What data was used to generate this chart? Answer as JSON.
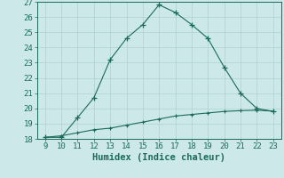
{
  "x": [
    9,
    10,
    11,
    12,
    13,
    14,
    15,
    16,
    17,
    18,
    19,
    20,
    21,
    22,
    23
  ],
  "y_main": [
    18.1,
    18.1,
    19.4,
    20.7,
    23.2,
    24.6,
    25.5,
    26.8,
    26.3,
    25.5,
    24.6,
    22.7,
    21.0,
    20.0,
    19.8
  ],
  "y_min": [
    18.1,
    18.2,
    18.4,
    18.6,
    18.7,
    18.9,
    19.1,
    19.3,
    19.5,
    19.6,
    19.7,
    19.8,
    19.85,
    19.88,
    19.82
  ],
  "xlim": [
    8.5,
    23.5
  ],
  "ylim": [
    18,
    27
  ],
  "xticks": [
    9,
    10,
    11,
    12,
    13,
    14,
    15,
    16,
    17,
    18,
    19,
    20,
    21,
    22,
    23
  ],
  "yticks": [
    18,
    19,
    20,
    21,
    22,
    23,
    24,
    25,
    26,
    27
  ],
  "xlabel": "Humidex (Indice chaleur)",
  "line_color": "#1a6b5a",
  "bg_color": "#cce8e8",
  "grid_color": "#b0d0d0",
  "tick_fontsize": 6.5,
  "label_fontsize": 7.5
}
